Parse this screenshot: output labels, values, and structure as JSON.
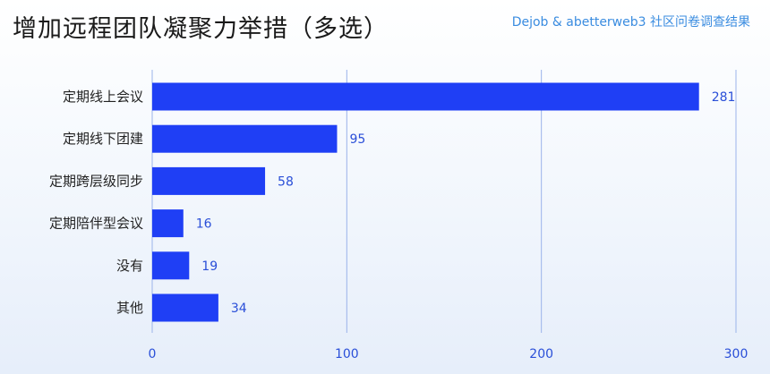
{
  "header": {
    "title": "增加远程团队凝聚力举措（多选）",
    "source": "Dejob & abetterweb3 社区问卷调查结果"
  },
  "colors": {
    "bar": "#1f3ff5",
    "gridline": "#9bb3ea",
    "value_label": "#2a4fd8",
    "title": "#1a1a1a",
    "source": "#3a8ce0"
  },
  "chart_data": {
    "type": "bar",
    "orientation": "horizontal",
    "categories": [
      "定期线上会议",
      "定期线下团建",
      "定期跨层级同步",
      "定期陪伴型会议",
      "没有",
      "其他"
    ],
    "values": [
      281,
      95,
      58,
      16,
      19,
      34
    ],
    "xlim": [
      0,
      300
    ],
    "xticks": [
      0,
      100,
      200,
      300
    ],
    "grid": true,
    "legend": "none",
    "title": "增加远程团队凝聚力举措（多选）"
  }
}
